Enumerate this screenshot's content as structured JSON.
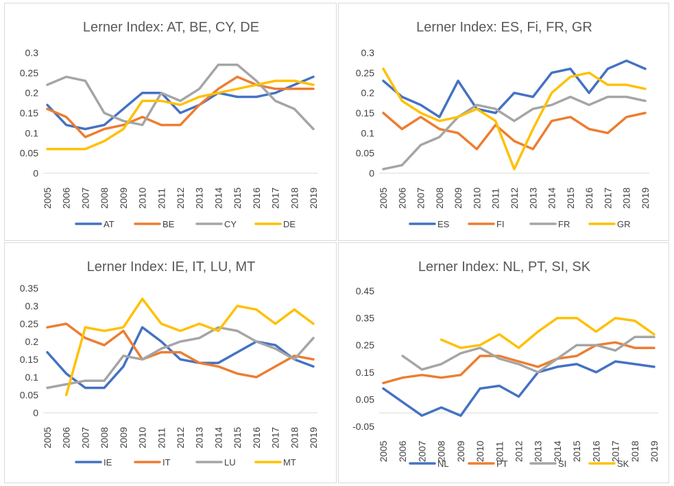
{
  "chart_data": [
    {
      "type": "line",
      "title": "Lerner Index: AT, BE, CY, DE",
      "x": [
        "2005",
        "2006",
        "2007",
        "2008",
        "2009",
        "2010",
        "2011",
        "2012",
        "2013",
        "2014",
        "2015",
        "2016",
        "2017",
        "2018",
        "2019"
      ],
      "ylim": [
        0,
        0.3
      ],
      "yticks": [
        "0",
        "0.05",
        "0.1",
        "0.15",
        "0.2",
        "0.25",
        "0.3"
      ],
      "grid": false,
      "legend": "bottom",
      "series": [
        {
          "name": "AT",
          "color": "#4472c4",
          "values": [
            0.17,
            0.12,
            0.11,
            0.12,
            0.16,
            0.2,
            0.2,
            0.15,
            0.17,
            0.2,
            0.19,
            0.19,
            0.2,
            0.22,
            0.24
          ]
        },
        {
          "name": "BE",
          "color": "#ed7d31",
          "values": [
            0.16,
            0.14,
            0.09,
            0.11,
            0.12,
            0.14,
            0.12,
            0.12,
            0.17,
            0.21,
            0.24,
            0.22,
            0.21,
            0.21,
            0.21
          ]
        },
        {
          "name": "CY",
          "color": "#a5a5a5",
          "values": [
            0.22,
            0.24,
            0.23,
            0.15,
            0.13,
            0.12,
            0.2,
            0.18,
            0.21,
            0.27,
            0.27,
            0.23,
            0.18,
            0.16,
            0.11
          ]
        },
        {
          "name": "DE",
          "color": "#ffc000",
          "values": [
            0.06,
            0.06,
            0.06,
            0.08,
            0.11,
            0.18,
            0.18,
            0.17,
            0.19,
            0.2,
            0.21,
            0.22,
            0.23,
            0.23,
            0.22
          ]
        }
      ]
    },
    {
      "type": "line",
      "title": "Lerner Index: ES, Fi, FR, GR",
      "x": [
        "2005",
        "2006",
        "2007",
        "2008",
        "2009",
        "2010",
        "2011",
        "2012",
        "2013",
        "2014",
        "2015",
        "2016",
        "2017",
        "2018",
        "2019"
      ],
      "ylim": [
        0,
        0.3
      ],
      "yticks": [
        "0",
        "0.05",
        "0.1",
        "0.15",
        "0.2",
        "0.25",
        "0.3"
      ],
      "grid": false,
      "legend": "bottom",
      "series": [
        {
          "name": "ES",
          "color": "#4472c4",
          "values": [
            0.23,
            0.19,
            0.17,
            0.14,
            0.23,
            0.16,
            0.15,
            0.2,
            0.19,
            0.25,
            0.26,
            0.2,
            0.26,
            0.28,
            0.26
          ]
        },
        {
          "name": "FI",
          "color": "#ed7d31",
          "values": [
            0.15,
            0.11,
            0.14,
            0.11,
            0.1,
            0.06,
            0.12,
            0.08,
            0.06,
            0.13,
            0.14,
            0.11,
            0.1,
            0.14,
            0.15
          ]
        },
        {
          "name": "FR",
          "color": "#a5a5a5",
          "values": [
            0.01,
            0.02,
            0.07,
            0.09,
            0.14,
            0.17,
            0.16,
            0.13,
            0.16,
            0.17,
            0.19,
            0.17,
            0.19,
            0.19,
            0.18
          ]
        },
        {
          "name": "GR",
          "color": "#ffc000",
          "values": [
            0.26,
            0.18,
            0.15,
            0.13,
            0.14,
            0.16,
            0.13,
            0.01,
            0.11,
            0.2,
            0.24,
            0.25,
            0.22,
            0.22,
            0.21
          ]
        }
      ]
    },
    {
      "type": "line",
      "title": "Lerner Index: IE, IT, LU, MT",
      "x": [
        "2005",
        "2006",
        "2007",
        "2008",
        "2009",
        "2010",
        "2011",
        "2012",
        "2013",
        "2014",
        "2015",
        "2016",
        "2017",
        "2018",
        "2019"
      ],
      "ylim": [
        0,
        0.35
      ],
      "yticks": [
        "0",
        "0.05",
        "0.1",
        "0.15",
        "0.2",
        "0.25",
        "0.3",
        "0.35"
      ],
      "grid": false,
      "legend": "bottom",
      "series": [
        {
          "name": "IE",
          "color": "#4472c4",
          "values": [
            0.17,
            0.11,
            0.07,
            0.07,
            0.13,
            0.24,
            0.2,
            0.15,
            0.14,
            0.14,
            0.17,
            0.2,
            0.19,
            0.15,
            0.13
          ]
        },
        {
          "name": "IT",
          "color": "#ed7d31",
          "values": [
            0.24,
            0.25,
            0.21,
            0.19,
            0.23,
            0.15,
            0.17,
            0.17,
            0.14,
            0.13,
            0.11,
            0.1,
            0.13,
            0.16,
            0.15
          ]
        },
        {
          "name": "LU",
          "color": "#a5a5a5",
          "values": [
            0.07,
            0.08,
            0.09,
            0.09,
            0.16,
            0.15,
            0.18,
            0.2,
            0.21,
            0.24,
            0.23,
            0.2,
            0.18,
            0.15,
            0.21
          ]
        },
        {
          "name": "MT",
          "color": "#ffc000",
          "values": [
            null,
            0.05,
            0.24,
            0.23,
            0.24,
            0.32,
            0.25,
            0.23,
            0.25,
            0.23,
            0.3,
            0.29,
            0.25,
            0.29,
            0.25
          ]
        }
      ]
    },
    {
      "type": "line",
      "title": "Lerner Index: NL, PT, SI, SK",
      "x": [
        "2005",
        "2006",
        "2007",
        "2008",
        "2009",
        "2010",
        "2011",
        "2012",
        "2013",
        "2014",
        "2015",
        "2016",
        "2017",
        "2018",
        "2019"
      ],
      "ylim": [
        -0.05,
        0.45
      ],
      "yticks": [
        "-0.05",
        "0.05",
        "0.15",
        "0.25",
        "0.35",
        "0.45"
      ],
      "grid": false,
      "legend": "bottom",
      "series": [
        {
          "name": "NL",
          "color": "#4472c4",
          "values": [
            0.09,
            0.04,
            -0.01,
            0.02,
            -0.01,
            0.09,
            0.1,
            0.06,
            0.15,
            0.17,
            0.18,
            0.15,
            0.19,
            0.18,
            0.17
          ]
        },
        {
          "name": "PT",
          "color": "#ed7d31",
          "values": [
            0.11,
            0.13,
            0.14,
            0.13,
            0.14,
            0.21,
            0.21,
            0.19,
            0.17,
            0.2,
            0.21,
            0.25,
            0.26,
            0.24,
            0.24
          ]
        },
        {
          "name": "SI",
          "color": "#a5a5a5",
          "values": [
            null,
            0.21,
            0.16,
            0.18,
            0.22,
            0.24,
            0.2,
            0.18,
            0.15,
            0.2,
            0.25,
            0.25,
            0.23,
            0.28,
            0.28
          ]
        },
        {
          "name": "SK",
          "color": "#ffc000",
          "values": [
            null,
            null,
            null,
            0.27,
            0.24,
            0.25,
            0.29,
            0.24,
            0.3,
            0.35,
            0.35,
            0.3,
            0.35,
            0.34,
            0.29
          ]
        }
      ]
    }
  ]
}
